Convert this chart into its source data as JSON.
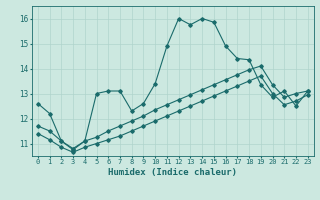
{
  "bg_color": "#cce8e0",
  "grid_color": "#b0d4cc",
  "line_color": "#1a6b6b",
  "xlabel": "Humidex (Indice chaleur)",
  "xlim": [
    -0.5,
    23.5
  ],
  "ylim": [
    10.5,
    16.5
  ],
  "yticks": [
    11,
    12,
    13,
    14,
    15,
    16
  ],
  "xticks": [
    0,
    1,
    2,
    3,
    4,
    5,
    6,
    7,
    8,
    9,
    10,
    11,
    12,
    13,
    14,
    15,
    16,
    17,
    18,
    19,
    20,
    21,
    22,
    23
  ],
  "line1_x": [
    0,
    1,
    2,
    3,
    4,
    5,
    6,
    7,
    8,
    9,
    10,
    11,
    12,
    13,
    14,
    15,
    16,
    17,
    18,
    19,
    20,
    21,
    22,
    23
  ],
  "line1_y": [
    12.6,
    12.2,
    11.1,
    10.8,
    11.1,
    13.0,
    13.1,
    13.1,
    12.3,
    12.6,
    13.4,
    14.9,
    16.0,
    15.75,
    16.0,
    15.85,
    14.9,
    14.4,
    14.35,
    13.35,
    12.85,
    13.1,
    12.5,
    13.1
  ],
  "line2_x": [
    0,
    1,
    2,
    3,
    4,
    5,
    6,
    7,
    8,
    9,
    10,
    11,
    12,
    13,
    14,
    15,
    16,
    17,
    18,
    19,
    20,
    21,
    22,
    23
  ],
  "line2_y": [
    11.7,
    11.5,
    11.1,
    10.75,
    11.1,
    11.25,
    11.5,
    11.7,
    11.9,
    12.1,
    12.35,
    12.55,
    12.75,
    12.95,
    13.15,
    13.35,
    13.55,
    13.75,
    13.95,
    14.1,
    13.35,
    12.85,
    13.0,
    13.1
  ],
  "line3_x": [
    0,
    1,
    2,
    3,
    4,
    5,
    6,
    7,
    8,
    9,
    10,
    11,
    12,
    13,
    14,
    15,
    16,
    17,
    18,
    19,
    20,
    21,
    22,
    23
  ],
  "line3_y": [
    11.4,
    11.15,
    10.85,
    10.65,
    10.85,
    11.0,
    11.15,
    11.3,
    11.5,
    11.7,
    11.9,
    12.1,
    12.3,
    12.5,
    12.7,
    12.9,
    13.1,
    13.3,
    13.5,
    13.7,
    13.0,
    12.55,
    12.7,
    12.95
  ]
}
